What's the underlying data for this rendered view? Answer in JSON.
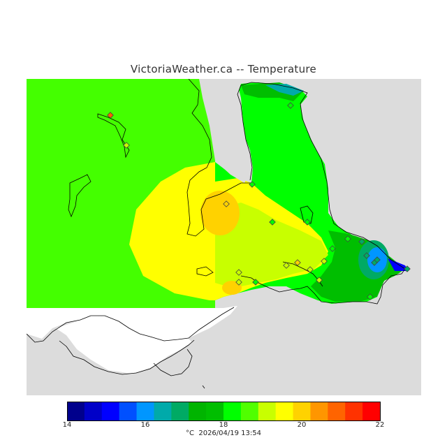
{
  "title": "VictoriaWeather.ca -- Temperature",
  "legend": {
    "min": 14,
    "max": 22,
    "tick_labels": [
      "14",
      "16",
      "18",
      "20",
      "22"
    ],
    "colors": [
      "#00008c",
      "#0000c8",
      "#0000ff",
      "#0050ff",
      "#0096ff",
      "#00aaaa",
      "#00aa64",
      "#00b400",
      "#00be00",
      "#00ff00",
      "#50ff00",
      "#c8ff00",
      "#ffff00",
      "#ffd200",
      "#ff9600",
      "#ff6400",
      "#ff3200",
      "#ff0000"
    ]
  },
  "footer": {
    "unit": "°C",
    "timestamp": "2026/04/19 13:54"
  },
  "stations": [
    {
      "temp": 21
    },
    {
      "temp": 19
    },
    {
      "temp": 18
    },
    {
      "temp": 18
    },
    {
      "temp": 20
    },
    {
      "temp": 18
    },
    {
      "temp": 18
    },
    {
      "temp": 19
    },
    {
      "temp": 19
    },
    {
      "temp": 20
    },
    {
      "temp": 19
    },
    {
      "temp": 19
    },
    {
      "temp": 19
    },
    {
      "temp": 19
    },
    {
      "temp": 18
    },
    {
      "temp": 18
    },
    {
      "temp": 17
    },
    {
      "temp": 17
    },
    {
      "temp": 17
    },
    {
      "temp": 17
    },
    {
      "temp": 17
    },
    {
      "temp": 18
    },
    {
      "temp": 18
    }
  ]
}
